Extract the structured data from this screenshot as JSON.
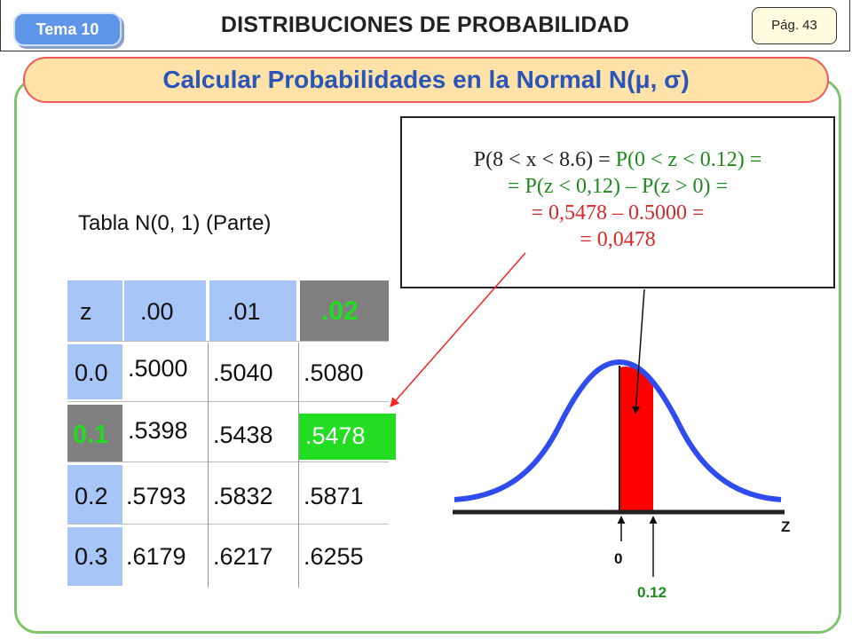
{
  "header": {
    "tema": "Tema 10",
    "title": "DISTRIBUCIONES DE PROBABILIDAD",
    "page": "Pág. 43"
  },
  "slide_title": "Calcular Probabilidades en la Normal N(μ, σ)",
  "formula": {
    "line1_a": "P(8 < x < 8.6) = ",
    "line1_b": "P(0 < z < 0.12) =",
    "line2": "= P(z < 0,12) – P(z > 0) =",
    "line3": "= 0,5478 – 0.5000 =",
    "line4": "= 0,0478"
  },
  "table": {
    "label": "Tabla N(0, 1) (Parte)",
    "headers": [
      "z",
      ".00",
      ".01",
      ".02"
    ],
    "rows": [
      [
        "0.0",
        ".5000",
        ".5040",
        ".5080"
      ],
      [
        "0.1",
        ".5398",
        ".5438",
        ".5478"
      ],
      [
        "0.2",
        ".5793",
        ".5832",
        ".5871"
      ],
      [
        "0.3",
        ".6179",
        ".6217",
        ".6255"
      ]
    ]
  },
  "graph": {
    "axis_label": "Z",
    "zero_label": "0",
    "z_label": "0.12"
  },
  "colors": {
    "highlight_green": "#22dd22",
    "header_blue": "#a8c5f7",
    "header_gray": "#808080",
    "curve_blue": "#2f4cf0",
    "area_red": "#ff0000"
  }
}
